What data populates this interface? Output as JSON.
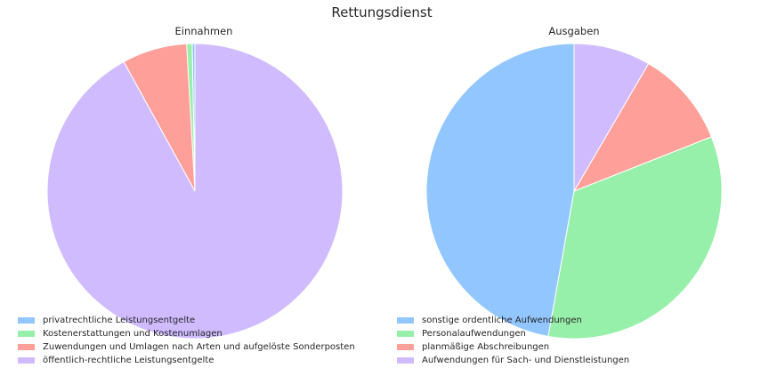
{
  "chart_data": {
    "title": "Rettungsdienst",
    "charts": [
      {
        "type": "pie",
        "title": "Einnahmen",
        "start_angle_deg": 90,
        "direction": "counterclockwise",
        "slices": [
          {
            "label": "privatrechtliche Leistungsentgelte",
            "value": 0.3,
            "color": "#92c6ff"
          },
          {
            "label": "Kostenerstattungen und Kostenumlagen",
            "value": 0.6,
            "color": "#97f0aa"
          },
          {
            "label": "Zuwendungen und Umlagen nach Arten und aufgelöste Sonderposten",
            "value": 7.1,
            "color": "#ff9f9a"
          },
          {
            "label": "öffentlich-rechtliche Leistungsentgelte",
            "value": 92.0,
            "color": "#d0bbff"
          }
        ]
      },
      {
        "type": "pie",
        "title": "Ausgaben",
        "start_angle_deg": 90,
        "direction": "counterclockwise",
        "slices": [
          {
            "label": "sonstige ordentliche Aufwendungen",
            "value": 47.2,
            "color": "#92c6ff"
          },
          {
            "label": "Personalaufwendungen",
            "value": 33.8,
            "color": "#97f0aa"
          },
          {
            "label": "planmäßige Abschreibungen",
            "value": 10.6,
            "color": "#ff9f9a"
          },
          {
            "label": "Aufwendungen für Sach- und Dienstleistungen",
            "value": 8.4,
            "color": "#d0bbff"
          }
        ]
      }
    ]
  }
}
